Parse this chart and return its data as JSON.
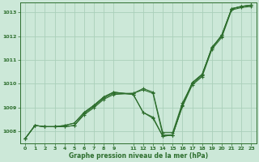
{
  "xlabel": "Graphe pression niveau de la mer (hPa)",
  "background_color": "#cce8d8",
  "grid_color": "#aacfba",
  "line_color": "#2d6e2d",
  "xlim": [
    -0.5,
    23.5
  ],
  "ylim": [
    1007.5,
    1013.4
  ],
  "yticks": [
    1008,
    1009,
    1010,
    1011,
    1012,
    1013
  ],
  "xticks": [
    0,
    1,
    2,
    3,
    4,
    5,
    6,
    7,
    8,
    9,
    11,
    12,
    13,
    14,
    15,
    16,
    17,
    18,
    19,
    20,
    21,
    22,
    23
  ],
  "xtick_labels": [
    "0",
    "1",
    "2",
    "3",
    "4",
    "5",
    "6",
    "7",
    "8",
    "9",
    "11",
    "12",
    "13",
    "14",
    "15",
    "16",
    "17",
    "18",
    "19",
    "20",
    "21",
    "22",
    "23"
  ],
  "series": [
    {
      "x": [
        0,
        1,
        2,
        3,
        4,
        5,
        6,
        7,
        8,
        9,
        11,
        12,
        13,
        14,
        15,
        16,
        17,
        18,
        19,
        20,
        21,
        22,
        23
      ],
      "y": [
        1007.7,
        1008.25,
        1008.2,
        1008.2,
        1008.2,
        1008.25,
        1008.7,
        1009.0,
        1009.35,
        1009.55,
        1009.6,
        1009.75,
        1009.6,
        1007.85,
        1007.85,
        1009.05,
        1009.95,
        1010.3,
        1011.45,
        1011.95,
        1013.1,
        1013.2,
        1013.25
      ]
    },
    {
      "x": [
        0,
        1,
        2,
        3,
        4,
        5,
        6,
        7,
        8,
        9,
        11,
        12,
        13,
        14,
        15,
        16,
        17,
        18,
        19,
        20,
        21,
        22,
        23
      ],
      "y": [
        1007.7,
        1008.25,
        1008.2,
        1008.2,
        1008.2,
        1008.25,
        1008.75,
        1009.05,
        1009.4,
        1009.6,
        1009.6,
        1009.8,
        1009.65,
        1007.95,
        1007.95,
        1009.2,
        1010.0,
        1010.35,
        1011.55,
        1012.0,
        1013.15,
        1013.25,
        1013.3
      ]
    },
    {
      "x": [
        0,
        1,
        2,
        3,
        4,
        5,
        6,
        7,
        8,
        9,
        11,
        12,
        13,
        14,
        15,
        16,
        17,
        18,
        19,
        20,
        21,
        22,
        23
      ],
      "y": [
        1007.7,
        1008.25,
        1008.2,
        1008.2,
        1008.25,
        1008.35,
        1008.8,
        1009.1,
        1009.45,
        1009.65,
        1009.55,
        1008.8,
        1008.55,
        1007.8,
        1007.85,
        1009.1,
        1010.05,
        1010.4,
        1011.5,
        1012.05,
        1013.15,
        1013.25,
        1013.3
      ]
    },
    {
      "x": [
        0,
        1,
        2,
        3,
        4,
        5,
        6,
        7,
        8,
        9,
        11,
        12,
        13,
        14,
        15,
        16,
        17,
        18,
        19,
        20,
        21,
        22,
        23
      ],
      "y": [
        1007.7,
        1008.25,
        1008.2,
        1008.2,
        1008.25,
        1008.35,
        1008.8,
        1009.1,
        1009.45,
        1009.65,
        1009.55,
        1008.8,
        1008.6,
        1007.8,
        1007.85,
        1009.1,
        1010.05,
        1010.4,
        1011.5,
        1012.05,
        1013.15,
        1013.25,
        1013.3
      ]
    }
  ]
}
